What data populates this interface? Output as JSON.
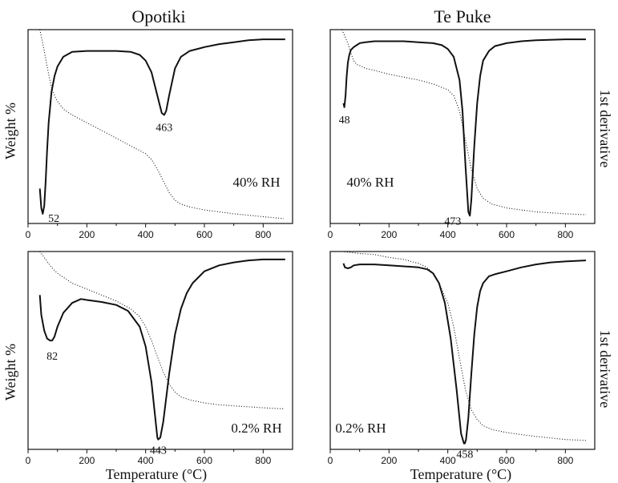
{
  "col_titles": [
    "Opotiki",
    "Te Puke"
  ],
  "ylabel": "Weight %",
  "right_label": "1st derivative",
  "xlabel": "Temperature (°C)",
  "colors": {
    "line": "#111111",
    "background": "#ffffff"
  },
  "chart_data": [
    {
      "type": "line",
      "location": "Opotiki",
      "condition": "40% RH",
      "xlim": [
        0,
        900
      ],
      "xticks": [
        0,
        200,
        400,
        600,
        800
      ],
      "peaks": [
        {
          "x": 52,
          "label": "52"
        },
        {
          "x": 463,
          "label": "463"
        }
      ],
      "series": [
        {
          "style": "solid",
          "x": [
            40,
            45,
            50,
            55,
            60,
            65,
            70,
            80,
            90,
            100,
            120,
            150,
            200,
            250,
            300,
            350,
            380,
            400,
            420,
            440,
            455,
            463,
            470,
            480,
            500,
            520,
            550,
            600,
            650,
            700,
            750,
            800,
            850,
            875
          ],
          "y": [
            0.18,
            0.08,
            0.05,
            0.09,
            0.22,
            0.38,
            0.52,
            0.68,
            0.76,
            0.81,
            0.86,
            0.885,
            0.89,
            0.89,
            0.89,
            0.885,
            0.87,
            0.84,
            0.78,
            0.66,
            0.57,
            0.56,
            0.58,
            0.66,
            0.8,
            0.86,
            0.89,
            0.91,
            0.925,
            0.935,
            0.945,
            0.95,
            0.95,
            0.95
          ]
        },
        {
          "style": "dotted",
          "x": [
            40,
            50,
            60,
            70,
            80,
            90,
            100,
            120,
            150,
            200,
            250,
            300,
            350,
            400,
            420,
            440,
            460,
            480,
            500,
            520,
            550,
            600,
            650,
            700,
            800,
            870
          ],
          "y": [
            1.0,
            0.93,
            0.85,
            0.77,
            0.7,
            0.66,
            0.63,
            0.59,
            0.56,
            0.52,
            0.48,
            0.44,
            0.4,
            0.36,
            0.33,
            0.28,
            0.22,
            0.16,
            0.12,
            0.1,
            0.085,
            0.07,
            0.06,
            0.05,
            0.035,
            0.025
          ]
        }
      ]
    },
    {
      "type": "line",
      "location": "Te Puke",
      "condition": "40% RH",
      "xlim": [
        0,
        900
      ],
      "xticks": [
        0,
        200,
        400,
        600,
        800
      ],
      "peaks": [
        {
          "x": 48,
          "label": "48"
        },
        {
          "x": 473,
          "label": "473"
        }
      ],
      "series": [
        {
          "style": "solid",
          "x": [
            45,
            48,
            52,
            56,
            60,
            65,
            70,
            80,
            90,
            100,
            120,
            150,
            200,
            250,
            300,
            350,
            380,
            400,
            420,
            440,
            450,
            460,
            470,
            475,
            480,
            490,
            500,
            510,
            520,
            540,
            560,
            600,
            650,
            700,
            800,
            870
          ],
          "y": [
            0.62,
            0.6,
            0.66,
            0.76,
            0.83,
            0.87,
            0.895,
            0.91,
            0.92,
            0.93,
            0.935,
            0.94,
            0.94,
            0.94,
            0.935,
            0.93,
            0.92,
            0.9,
            0.86,
            0.74,
            0.58,
            0.3,
            0.06,
            0.04,
            0.12,
            0.4,
            0.62,
            0.76,
            0.84,
            0.89,
            0.915,
            0.93,
            0.94,
            0.945,
            0.95,
            0.95
          ]
        },
        {
          "style": "dotted",
          "x": [
            40,
            60,
            70,
            80,
            90,
            100,
            120,
            150,
            200,
            250,
            300,
            350,
            400,
            420,
            440,
            460,
            480,
            500,
            520,
            550,
            600,
            650,
            700,
            800,
            870
          ],
          "y": [
            1.0,
            0.93,
            0.88,
            0.84,
            0.82,
            0.815,
            0.8,
            0.79,
            0.77,
            0.755,
            0.74,
            0.72,
            0.69,
            0.66,
            0.58,
            0.43,
            0.28,
            0.18,
            0.13,
            0.1,
            0.08,
            0.07,
            0.06,
            0.05,
            0.045
          ]
        }
      ]
    },
    {
      "type": "line",
      "location": "Opotiki",
      "condition": "0.2% RH",
      "xlim": [
        0,
        900
      ],
      "xticks": [
        0,
        200,
        400,
        600,
        800
      ],
      "peaks": [
        {
          "x": 82,
          "label": "82"
        },
        {
          "x": 443,
          "label": "443"
        }
      ],
      "series": [
        {
          "style": "solid",
          "x": [
            40,
            45,
            55,
            65,
            75,
            82,
            90,
            100,
            120,
            150,
            180,
            200,
            250,
            300,
            340,
            380,
            400,
            420,
            440,
            443,
            450,
            460,
            480,
            500,
            520,
            540,
            560,
            600,
            650,
            700,
            750,
            800,
            850,
            875
          ],
          "y": [
            0.78,
            0.68,
            0.6,
            0.56,
            0.55,
            0.55,
            0.57,
            0.62,
            0.69,
            0.74,
            0.76,
            0.755,
            0.745,
            0.73,
            0.7,
            0.62,
            0.52,
            0.34,
            0.06,
            0.05,
            0.06,
            0.14,
            0.38,
            0.58,
            0.71,
            0.79,
            0.84,
            0.9,
            0.93,
            0.945,
            0.955,
            0.96,
            0.96,
            0.96
          ]
        },
        {
          "style": "dotted",
          "x": [
            40,
            50,
            60,
            80,
            100,
            150,
            200,
            250,
            300,
            350,
            380,
            400,
            420,
            440,
            460,
            480,
            500,
            520,
            550,
            600,
            650,
            700,
            750,
            800,
            870
          ],
          "y": [
            1.0,
            0.98,
            0.96,
            0.92,
            0.89,
            0.84,
            0.81,
            0.78,
            0.75,
            0.71,
            0.67,
            0.62,
            0.55,
            0.47,
            0.39,
            0.33,
            0.29,
            0.265,
            0.25,
            0.235,
            0.225,
            0.22,
            0.215,
            0.21,
            0.205
          ]
        }
      ]
    },
    {
      "type": "line",
      "location": "Te Puke",
      "condition": "0.2% RH",
      "xlim": [
        0,
        900
      ],
      "xticks": [
        0,
        200,
        400,
        600,
        800
      ],
      "peaks": [
        {
          "x": 458,
          "label": "458"
        }
      ],
      "series": [
        {
          "style": "solid",
          "x": [
            45,
            50,
            60,
            70,
            80,
            100,
            150,
            200,
            250,
            300,
            330,
            350,
            370,
            390,
            410,
            430,
            445,
            455,
            458,
            462,
            470,
            480,
            490,
            500,
            510,
            520,
            540,
            560,
            600,
            650,
            700,
            750,
            800,
            870
          ],
          "y": [
            0.94,
            0.92,
            0.915,
            0.92,
            0.93,
            0.935,
            0.935,
            0.93,
            0.925,
            0.92,
            0.91,
            0.89,
            0.84,
            0.74,
            0.56,
            0.3,
            0.08,
            0.03,
            0.03,
            0.05,
            0.16,
            0.38,
            0.58,
            0.72,
            0.8,
            0.84,
            0.875,
            0.885,
            0.9,
            0.92,
            0.935,
            0.945,
            0.95,
            0.955
          ]
        },
        {
          "style": "dotted",
          "x": [
            40,
            100,
            150,
            200,
            250,
            300,
            330,
            350,
            370,
            400,
            420,
            440,
            460,
            480,
            500,
            520,
            550,
            600,
            650,
            700,
            800,
            870
          ],
          "y": [
            1.0,
            0.99,
            0.985,
            0.97,
            0.96,
            0.94,
            0.92,
            0.89,
            0.84,
            0.74,
            0.62,
            0.46,
            0.3,
            0.2,
            0.15,
            0.12,
            0.1,
            0.085,
            0.075,
            0.065,
            0.05,
            0.045
          ]
        }
      ]
    }
  ]
}
